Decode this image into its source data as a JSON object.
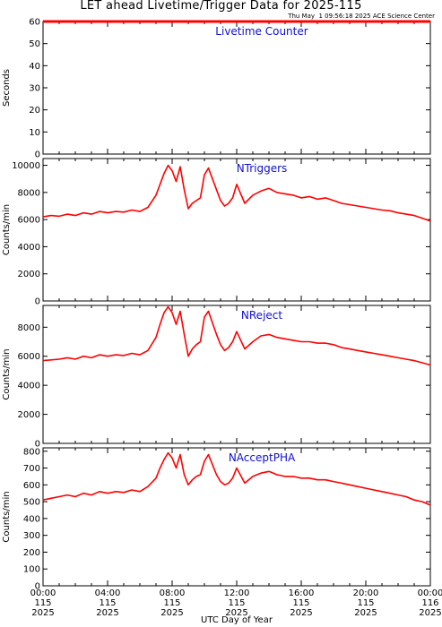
{
  "header": {
    "title": "LET ahead Livetime/Trigger Data for 2025-115",
    "stamp": "Thu May  1 09:56:18 2025 ACE Science Center"
  },
  "colors": {
    "series": "#ff0000",
    "panel_label": "#1010d0",
    "axis": "#000000"
  },
  "chart_data": [
    {
      "type": "line",
      "label": "Livetime Counter",
      "ylabel": "Seconds",
      "ylim": [
        0,
        60
      ],
      "yticks": [
        0,
        10,
        20,
        30,
        40,
        50,
        60
      ],
      "x_range_hours": [
        0,
        24
      ],
      "series": [
        {
          "name": "",
          "x": [
            0,
            24
          ],
          "y": [
            60,
            60
          ]
        }
      ]
    },
    {
      "type": "line",
      "label": "NTriggers",
      "ylabel": "Counts/min",
      "ylim": [
        0,
        10500
      ],
      "yticks": [
        0,
        2000,
        4000,
        6000,
        8000,
        10000
      ],
      "x_range_hours": [
        0,
        24
      ],
      "series": [
        {
          "name": "",
          "x": [
            0,
            0.5,
            1,
            1.5,
            2,
            2.5,
            3,
            3.5,
            4,
            4.5,
            5,
            5.5,
            6,
            6.5,
            7,
            7.25,
            7.5,
            7.75,
            8,
            8.25,
            8.5,
            8.75,
            9,
            9.25,
            9.5,
            9.75,
            10,
            10.25,
            10.5,
            10.75,
            11,
            11.25,
            11.5,
            11.75,
            12,
            12.5,
            13,
            13.5,
            14,
            14.5,
            15,
            15.5,
            16,
            16.5,
            17,
            17.5,
            18,
            18.5,
            19,
            19.5,
            20,
            20.5,
            21,
            21.5,
            22,
            22.5,
            23,
            23.5,
            24
          ],
          "y": [
            6200,
            6300,
            6250,
            6400,
            6300,
            6500,
            6400,
            6600,
            6500,
            6600,
            6550,
            6700,
            6600,
            6900,
            7800,
            8600,
            9400,
            10000,
            9600,
            8800,
            9900,
            8200,
            6800,
            7200,
            7400,
            7600,
            9300,
            9800,
            9000,
            8200,
            7400,
            7000,
            7200,
            7600,
            8600,
            7200,
            7800,
            8100,
            8300,
            8000,
            7900,
            7800,
            7600,
            7700,
            7500,
            7600,
            7400,
            7200,
            7100,
            7000,
            6900,
            6800,
            6700,
            6650,
            6500,
            6400,
            6300,
            6100,
            5900
          ]
        }
      ]
    },
    {
      "type": "line",
      "label": "NReject",
      "ylabel": "Counts/min",
      "ylim": [
        0,
        9500
      ],
      "yticks": [
        0,
        2000,
        4000,
        6000,
        8000
      ],
      "x_range_hours": [
        0,
        24
      ],
      "series": [
        {
          "name": "",
          "x": [
            0,
            0.5,
            1,
            1.5,
            2,
            2.5,
            3,
            3.5,
            4,
            4.5,
            5,
            5.5,
            6,
            6.5,
            7,
            7.25,
            7.5,
            7.75,
            8,
            8.25,
            8.5,
            8.75,
            9,
            9.25,
            9.5,
            9.75,
            10,
            10.25,
            10.5,
            10.75,
            11,
            11.25,
            11.5,
            11.75,
            12,
            12.5,
            13,
            13.5,
            14,
            14.5,
            15,
            15.5,
            16,
            16.5,
            17,
            17.5,
            18,
            18.5,
            19,
            19.5,
            20,
            20.5,
            21,
            21.5,
            22,
            22.5,
            23,
            23.5,
            24
          ],
          "y": [
            5700,
            5750,
            5800,
            5900,
            5800,
            6000,
            5900,
            6100,
            6000,
            6100,
            6050,
            6200,
            6100,
            6400,
            7300,
            8200,
            9000,
            9400,
            9000,
            8200,
            9100,
            7500,
            6000,
            6500,
            6800,
            7000,
            8700,
            9100,
            8300,
            7500,
            6800,
            6400,
            6600,
            7000,
            7700,
            6500,
            7000,
            7400,
            7500,
            7300,
            7200,
            7100,
            7000,
            7000,
            6900,
            6900,
            6800,
            6600,
            6500,
            6400,
            6300,
            6200,
            6100,
            6000,
            5900,
            5800,
            5700,
            5550,
            5400
          ]
        }
      ]
    },
    {
      "type": "line",
      "label": "NAcceptPHA",
      "ylabel": "Counts/min",
      "ylim": [
        0,
        820
      ],
      "yticks": [
        0,
        100,
        200,
        300,
        400,
        500,
        600,
        700,
        800
      ],
      "x_range_hours": [
        0,
        24
      ],
      "x_tick_labels": [
        [
          "00:00",
          "115",
          "2025"
        ],
        [
          "04:00",
          "115",
          "2025"
        ],
        [
          "08:00",
          "115",
          "2025"
        ],
        [
          "12:00",
          "115",
          "2025"
        ],
        [
          "16:00",
          "115",
          "2025"
        ],
        [
          "20:00",
          "115",
          "2025"
        ],
        [
          "00:00",
          "116",
          "2025"
        ]
      ],
      "xlabel": "UTC Day of Year",
      "series": [
        {
          "name": "",
          "x": [
            0,
            0.5,
            1,
            1.5,
            2,
            2.5,
            3,
            3.5,
            4,
            4.5,
            5,
            5.5,
            6,
            6.5,
            7,
            7.25,
            7.5,
            7.75,
            8,
            8.25,
            8.5,
            8.75,
            9,
            9.25,
            9.5,
            9.75,
            10,
            10.25,
            10.5,
            10.75,
            11,
            11.25,
            11.5,
            11.75,
            12,
            12.5,
            13,
            13.5,
            14,
            14.5,
            15,
            15.5,
            16,
            16.5,
            17,
            17.5,
            18,
            18.5,
            19,
            19.5,
            20,
            20.5,
            21,
            21.5,
            22,
            22.5,
            23,
            23.5,
            24
          ],
          "y": [
            510,
            520,
            530,
            540,
            530,
            550,
            540,
            560,
            550,
            560,
            555,
            570,
            560,
            590,
            640,
            700,
            750,
            790,
            760,
            700,
            780,
            660,
            600,
            630,
            650,
            660,
            740,
            780,
            720,
            660,
            620,
            600,
            610,
            640,
            700,
            610,
            650,
            670,
            680,
            660,
            650,
            650,
            640,
            640,
            630,
            630,
            620,
            610,
            600,
            590,
            580,
            570,
            560,
            550,
            540,
            530,
            510,
            500,
            480
          ]
        }
      ]
    }
  ]
}
